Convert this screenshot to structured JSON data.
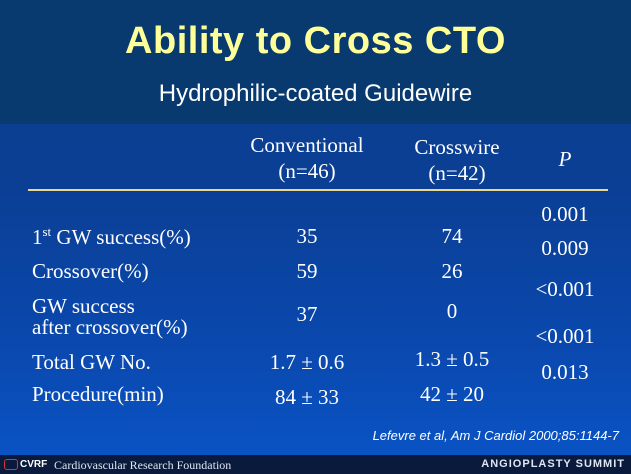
{
  "slide": {
    "title": "Ability to Cross CTO",
    "subtitle": "Hydrophilic-coated Guidewire"
  },
  "table": {
    "headers": {
      "conventional": "Conventional",
      "conventional_n": "(n=46)",
      "crosswire": "Crosswire",
      "crosswire_n": "(n=42)",
      "p": "P"
    },
    "rows": [
      {
        "label_pre": "1",
        "label_sup": "st",
        "label_post": " GW success(%)",
        "conventional": "35",
        "crosswire": "74"
      },
      {
        "label": "Crossover(%)",
        "conventional": "59",
        "crosswire": "26"
      },
      {
        "label_line1": "GW success",
        "label_line2": "after crossover(%)",
        "conventional": "37",
        "crosswire": "0"
      },
      {
        "label": "Total GW No.",
        "conventional": "1.7  ± 0.6",
        "crosswire": "1.3 ± 0.5"
      },
      {
        "label": "Procedure(min)",
        "conventional": "84 ± 33",
        "crosswire": "42 ± 20"
      }
    ],
    "p_values": [
      "0.001",
      "0.009",
      "<0.001",
      "<0.001",
      "0.013"
    ]
  },
  "citation": "Lefevre et al, Am J Cardiol 2000;85:1144-7",
  "footer": {
    "logo_text": "CVRF",
    "foundation": "Cardiovascular Research Foundation",
    "summit": "ANGIOPLASTY SUMMIT"
  },
  "colors": {
    "title": "#ffff99",
    "rule": "#e8d890",
    "header_band": "#08396f"
  }
}
